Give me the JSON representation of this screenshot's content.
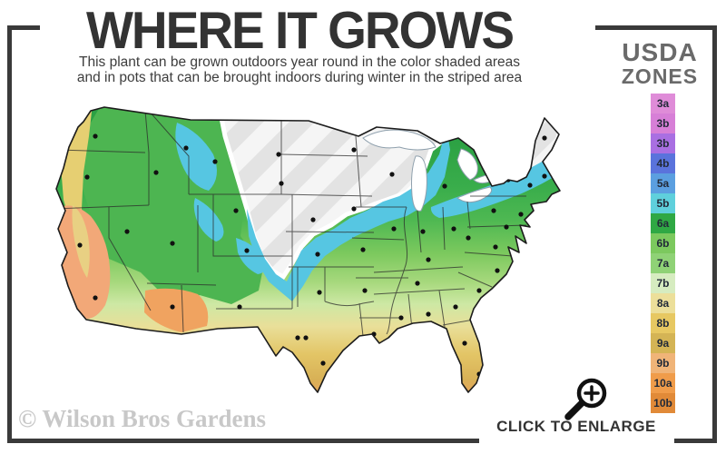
{
  "header": {
    "title": "WHERE IT GROWS",
    "subtitle_line1": "This plant can be grown outdoors year round in the color shaded areas",
    "subtitle_line2": "and in pots that can be brought indoors during winter in the striped area"
  },
  "legend": {
    "title_top": "USDA",
    "title_bottom": "ZONES",
    "zones": [
      {
        "label": "3a",
        "color": "#df8cd8"
      },
      {
        "label": "3b",
        "color": "#d77fd7"
      },
      {
        "label": "3b",
        "color": "#a96fe2"
      },
      {
        "label": "4b",
        "color": "#5a73dc"
      },
      {
        "label": "5a",
        "color": "#5b9fe0"
      },
      {
        "label": "5b",
        "color": "#5fd0dc"
      },
      {
        "label": "6a",
        "color": "#2fa844"
      },
      {
        "label": "6b",
        "color": "#7cc95e"
      },
      {
        "label": "7a",
        "color": "#8fd276"
      },
      {
        "label": "7b",
        "color": "#d6ecc0"
      },
      {
        "label": "8a",
        "color": "#ecdf9a"
      },
      {
        "label": "8b",
        "color": "#e7c862"
      },
      {
        "label": "9a",
        "color": "#d4b455"
      },
      {
        "label": "9b",
        "color": "#f0b478"
      },
      {
        "label": "10a",
        "color": "#f09c4a"
      },
      {
        "label": "10b",
        "color": "#e18a38"
      }
    ]
  },
  "map": {
    "region_label": "United States",
    "outline_color": "#1c1c1c",
    "city_marker_color": "#111111",
    "striped_area_colors": [
      "#f5f5f5",
      "#e3e3e3"
    ],
    "cyan_band_color": "#56c6e2",
    "zone_band_colors": [
      "#2ba043",
      "#4eb852",
      "#7cc95e",
      "#a6d87c",
      "#cde8a4",
      "#e9df99",
      "#e3c566",
      "#d8b156",
      "#eda25f",
      "#e8934c"
    ],
    "lake_color": "#ffffff"
  },
  "footer": {
    "watermark": "© Wilson Bros Gardens",
    "cta_label": "CLICK TO ENLARGE"
  },
  "frame": {
    "color": "#3a3a3a"
  }
}
